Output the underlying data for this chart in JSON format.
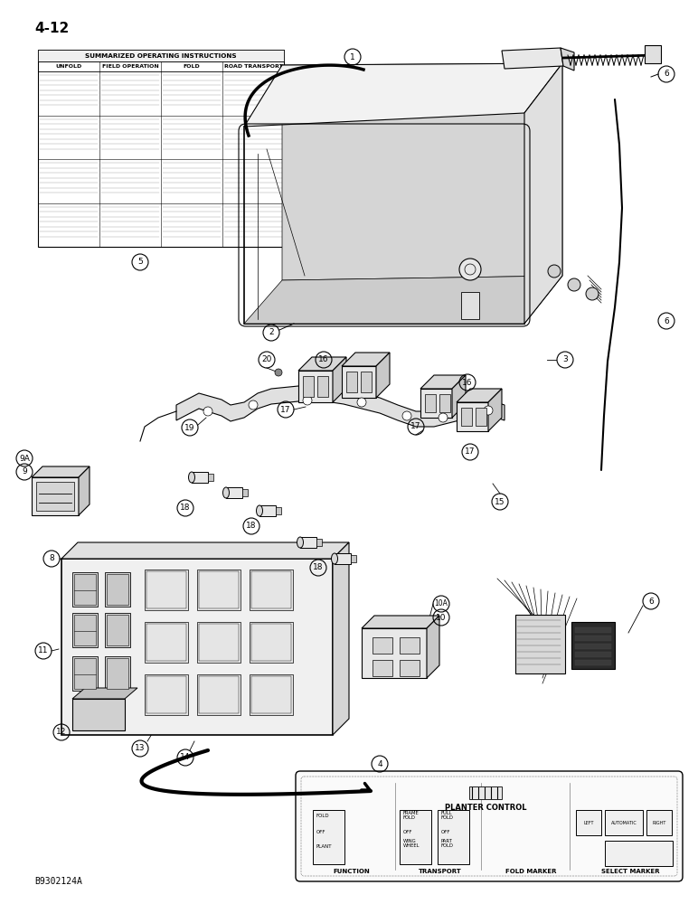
{
  "page_label": "4-12",
  "bg_color": "#ffffff",
  "drawing_color": "#000000",
  "bottom_label": "B9302124A",
  "table_cols": [
    "UNFOLD",
    "FIELD OPERATION",
    "FOLD",
    "ROAD TRANSPORT"
  ],
  "panel_sections": [
    "FUNCTION",
    "TRANSPORT",
    "FOLD MARKER",
    "SELECT MARKER"
  ],
  "panel_subsections": [
    [
      "FOLD",
      "OFF",
      "PLANT"
    ],
    [
      "FRAME\nFOLD",
      "OFF",
      "WING\nWHEEL"
    ],
    [
      "FULL\nFOLD",
      "OFF",
      "PART\nFOLD"
    ],
    [
      "LEFT",
      "AUTOMATIC",
      "RIGHT"
    ]
  ]
}
